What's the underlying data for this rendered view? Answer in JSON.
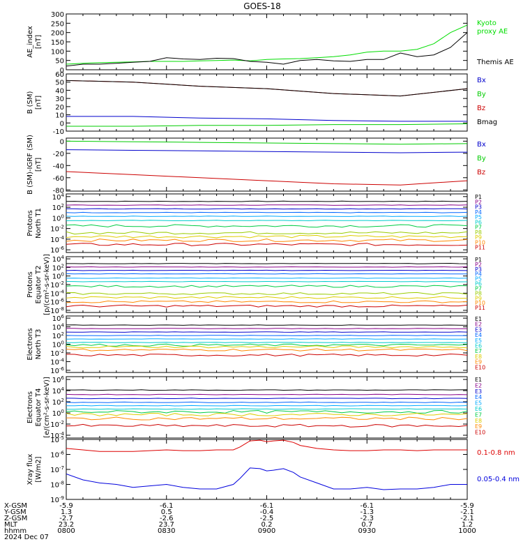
{
  "title": "GOES-18",
  "chart_data": [
    {
      "type": "line",
      "ylabel": [
        "AE_index",
        "[nT]"
      ],
      "yticks": [
        "300",
        "250",
        "200",
        "150",
        "100",
        "50",
        "0"
      ],
      "ytick_values": [
        300,
        250,
        200,
        150,
        100,
        50,
        0
      ],
      "ylim": [
        0,
        300
      ],
      "series": [
        {
          "name": "Kyoto proxy AE",
          "color": "#00dd00",
          "x": [
            0,
            5,
            10,
            15,
            20,
            25,
            30,
            35,
            40,
            45,
            50,
            55,
            60,
            65,
            70,
            75,
            80,
            85,
            90,
            95,
            100,
            105,
            110,
            115,
            120
          ],
          "y": [
            30,
            35,
            38,
            40,
            42,
            45,
            45,
            45,
            48,
            50,
            52,
            48,
            55,
            58,
            60,
            65,
            70,
            80,
            95,
            100,
            100,
            110,
            140,
            200,
            240
          ]
        },
        {
          "name": "Themis AE",
          "color": "#000000",
          "x": [
            0,
            5,
            10,
            15,
            20,
            25,
            30,
            35,
            40,
            45,
            50,
            55,
            60,
            65,
            70,
            75,
            80,
            85,
            90,
            95,
            100,
            105,
            110,
            115,
            120
          ],
          "y": [
            20,
            30,
            30,
            35,
            40,
            45,
            65,
            58,
            55,
            62,
            60,
            45,
            40,
            30,
            50,
            55,
            48,
            45,
            55,
            55,
            90,
            70,
            80,
            120,
            200
          ]
        }
      ]
    },
    {
      "type": "line",
      "ylabel": [
        "B (SM)",
        "[nT]"
      ],
      "yticks": [
        "60",
        "50",
        "40",
        "30",
        "20",
        "10",
        "0",
        "-10"
      ],
      "ytick_values": [
        60,
        50,
        40,
        30,
        20,
        10,
        0,
        -10
      ],
      "ylim": [
        -10,
        60
      ],
      "series": [
        {
          "name": "Bx",
          "color": "#0000cc",
          "x": [
            0,
            20,
            40,
            60,
            80,
            100,
            120
          ],
          "y": [
            8,
            8,
            6,
            5,
            3,
            2,
            2
          ]
        },
        {
          "name": "By",
          "color": "#00cc00",
          "x": [
            0,
            20,
            40,
            60,
            80,
            100,
            120
          ],
          "y": [
            -4,
            -4,
            -3,
            -3,
            -2,
            -2,
            -1
          ]
        },
        {
          "name": "Bz",
          "color": "#cc0000",
          "x": [
            0,
            20,
            40,
            60,
            80,
            100,
            120
          ],
          "y": [
            52,
            50,
            45,
            42,
            36,
            33,
            42
          ]
        },
        {
          "name": "Bmag",
          "color": "#000000",
          "x": [
            0,
            20,
            40,
            60,
            80,
            100,
            120
          ],
          "y": [
            52,
            50,
            45,
            42,
            36,
            33,
            42
          ]
        }
      ]
    },
    {
      "type": "line",
      "ylabel": [
        "B (SM)-IGRF (SM)",
        "[nT]"
      ],
      "yticks": [
        "0",
        "-20",
        "-40",
        "-60",
        "-80"
      ],
      "ytick_values": [
        0,
        -20,
        -40,
        -60,
        -80
      ],
      "ylim": [
        -82,
        5
      ],
      "series": [
        {
          "name": "Bx",
          "color": "#0000cc",
          "x": [
            0,
            20,
            40,
            60,
            80,
            100,
            120
          ],
          "y": [
            -14,
            -15,
            -16,
            -17,
            -18,
            -19,
            -18
          ]
        },
        {
          "name": "By",
          "color": "#00cc00",
          "x": [
            0,
            20,
            40,
            60,
            80,
            100,
            120
          ],
          "y": [
            0,
            -1,
            -2,
            -3,
            -4,
            -5,
            -4
          ]
        },
        {
          "name": "Bz",
          "color": "#cc0000",
          "x": [
            0,
            20,
            40,
            60,
            80,
            100,
            120
          ],
          "y": [
            -50,
            -55,
            -60,
            -65,
            -70,
            -72,
            -65
          ]
        }
      ]
    },
    {
      "type": "line",
      "log": true,
      "ylabel": [
        "Protons",
        "North T1"
      ],
      "yticks": [
        "10^4",
        "10^2",
        "10^0",
        "10^-2",
        "10^-4",
        "10^-6"
      ],
      "ytick_values": [
        4,
        2,
        0,
        -2,
        -4,
        -6
      ],
      "ylim": [
        -6.5,
        4.5
      ],
      "channels": [
        {
          "name": "P1",
          "color": "#000000",
          "level": 3.1
        },
        {
          "name": "P2",
          "color": "#880088",
          "level": 2.4
        },
        {
          "name": "P3",
          "color": "#0000cc",
          "level": 1.7
        },
        {
          "name": "P4",
          "color": "#0066ff",
          "level": 1.0
        },
        {
          "name": "P5",
          "color": "#00aaff",
          "level": 0.3
        },
        {
          "name": "P6",
          "color": "#00cccc",
          "level": -0.5
        },
        {
          "name": "P7",
          "color": "#00cc44",
          "level": -1.5
        },
        {
          "name": "P8",
          "color": "#99cc00",
          "level": -2.8
        },
        {
          "name": "P9",
          "color": "#ddcc00",
          "level": -3.5
        },
        {
          "name": "P10",
          "color": "#ff8800",
          "level": -4.2
        },
        {
          "name": "P11",
          "color": "#cc0000",
          "level": -5.0
        }
      ]
    },
    {
      "type": "line",
      "log": true,
      "ylabel": [
        "Protons",
        "Equator T2",
        "[p/(cm²-s-sr-keV)]"
      ],
      "yticks": [
        "10^4",
        "10^2",
        "10^0",
        "10^-2",
        "10^-4",
        "10^-6",
        "10^-8"
      ],
      "ytick_values": [
        4,
        2,
        0,
        -2,
        -4,
        -6,
        -8
      ],
      "ylim": [
        -8.5,
        4.5
      ],
      "channels": [
        {
          "name": "P1",
          "color": "#000000",
          "level": 2.9
        },
        {
          "name": "P2",
          "color": "#880088",
          "level": 2.1
        },
        {
          "name": "P3",
          "color": "#0000cc",
          "level": 1.3
        },
        {
          "name": "P4",
          "color": "#0066ff",
          "level": 0.5
        },
        {
          "name": "P5",
          "color": "#00aaff",
          "level": -0.5
        },
        {
          "name": "P6",
          "color": "#00cccc",
          "level": -1.3
        },
        {
          "name": "P7",
          "color": "#00cc44",
          "level": -2.4
        },
        {
          "name": "P8",
          "color": "#99cc00",
          "level": -4.1
        },
        {
          "name": "P9",
          "color": "#ddcc00",
          "level": -5.0
        },
        {
          "name": "P10",
          "color": "#ff8800",
          "level": -6.0
        },
        {
          "name": "P11",
          "color": "#cc0000",
          "level": -7.0
        }
      ]
    },
    {
      "type": "line",
      "log": true,
      "ylabel": [
        "Electrons",
        "North T3"
      ],
      "yticks": [
        "10^6",
        "10^4",
        "10^2",
        "10^0",
        "10^-2",
        "10^-4",
        "10^-6"
      ],
      "ytick_values": [
        6,
        4,
        2,
        0,
        -2,
        -4,
        -6
      ],
      "ylim": [
        -6.5,
        6.5
      ],
      "channels": [
        {
          "name": "E1",
          "color": "#000000",
          "level": 4.4
        },
        {
          "name": "E2",
          "color": "#880088",
          "level": 3.6
        },
        {
          "name": "E3",
          "color": "#0000cc",
          "level": 2.8
        },
        {
          "name": "E4",
          "color": "#0066ff",
          "level": 2.0
        },
        {
          "name": "E5",
          "color": "#00aaff",
          "level": 1.2
        },
        {
          "name": "E6",
          "color": "#00cccc",
          "level": 0.4
        },
        {
          "name": "E7",
          "color": "#00cc44",
          "level": -0.2
        },
        {
          "name": "E8",
          "color": "#ddcc00",
          "level": -0.6
        },
        {
          "name": "E9",
          "color": "#ff8800",
          "level": -1.3
        },
        {
          "name": "E10",
          "color": "#cc0000",
          "level": -2.5
        }
      ]
    },
    {
      "type": "line",
      "log": true,
      "ylabel": [
        "Electrons",
        "Equator T4",
        "[e/(cm²-s-sr-keV)]"
      ],
      "yticks": [
        "10^6",
        "10^4",
        "10^2",
        "10^0",
        "10^-2",
        "10^-4"
      ],
      "ytick_values": [
        6,
        4,
        2,
        0,
        -2,
        -4
      ],
      "ylim": [
        -4.5,
        6.5
      ],
      "channels": [
        {
          "name": "E1",
          "color": "#000000",
          "level": 4.1
        },
        {
          "name": "E2",
          "color": "#880088",
          "level": 3.3
        },
        {
          "name": "E3",
          "color": "#0000cc",
          "level": 2.6
        },
        {
          "name": "E4",
          "color": "#0066ff",
          "level": 1.9
        },
        {
          "name": "E5",
          "color": "#00aaff",
          "level": 1.3
        },
        {
          "name": "E6",
          "color": "#00cccc",
          "level": 0.7
        },
        {
          "name": "E7",
          "color": "#00cc44",
          "level": 0.2
        },
        {
          "name": "E8",
          "color": "#ddcc00",
          "level": -0.3
        },
        {
          "name": "E9",
          "color": "#ff8800",
          "level": -1.0
        },
        {
          "name": "E10",
          "color": "#cc0000",
          "level": -2.3
        }
      ]
    },
    {
      "type": "line",
      "log": true,
      "ylabel": [
        "Xray flux",
        "[W/m2]"
      ],
      "yticks": [
        "10^-5",
        "10^-6",
        "10^-7",
        "10^-8",
        "10^-9"
      ],
      "ytick_values": [
        -5,
        -6,
        -7,
        -8,
        -9
      ],
      "ylim": [
        -9,
        -5
      ],
      "series": [
        {
          "name": "0.1-0.8 nm",
          "color": "#dd0000",
          "x": [
            0,
            5,
            10,
            15,
            20,
            25,
            30,
            35,
            40,
            45,
            50,
            52,
            55,
            58,
            60,
            62,
            65,
            68,
            70,
            75,
            80,
            85,
            90,
            95,
            100,
            105,
            110,
            115,
            120
          ],
          "y": [
            -5.6,
            -5.7,
            -5.8,
            -5.8,
            -5.8,
            -5.75,
            -5.7,
            -5.75,
            -5.75,
            -5.7,
            -5.7,
            -5.5,
            -5.1,
            -5.05,
            -5.15,
            -5.1,
            -5.05,
            -5.2,
            -5.4,
            -5.6,
            -5.7,
            -5.75,
            -5.75,
            -5.7,
            -5.7,
            -5.75,
            -5.7,
            -5.7,
            -5.7
          ]
        },
        {
          "name": "0.05-0.4 nm",
          "color": "#0000dd",
          "x": [
            0,
            5,
            10,
            15,
            20,
            25,
            30,
            35,
            40,
            45,
            50,
            52,
            55,
            58,
            60,
            62,
            65,
            68,
            70,
            75,
            80,
            85,
            90,
            95,
            100,
            105,
            110,
            115,
            120
          ],
          "y": [
            -7.3,
            -7.7,
            -7.9,
            -8.0,
            -8.2,
            -8.1,
            -8.0,
            -8.2,
            -8.3,
            -8.3,
            -8.0,
            -7.6,
            -6.9,
            -6.95,
            -7.1,
            -7.05,
            -6.95,
            -7.2,
            -7.5,
            -7.9,
            -8.3,
            -8.3,
            -8.2,
            -8.35,
            -8.3,
            -8.3,
            -8.2,
            -8.0,
            -8.0
          ]
        }
      ]
    }
  ],
  "ephemeris": {
    "labels": [
      "X-GSM",
      "Y-GSM",
      "Z-GSM",
      "MLT",
      "hhmm",
      "2024 Dec 07"
    ],
    "columns": [
      [
        "-5.9",
        "1.3",
        "-2.7",
        "23.2",
        "0800"
      ],
      [
        "-6.1",
        "0.5",
        "-2.6",
        "23.7",
        "0830"
      ],
      [
        "-6.1",
        "-0.4",
        "-2.5",
        "0.2",
        "0900"
      ],
      [
        "-6.1",
        "-1.3",
        "-2.3",
        "0.7",
        "0930"
      ],
      [
        "-5.9",
        "-2.1",
        "-2.1",
        "1.2",
        "1000"
      ]
    ]
  }
}
